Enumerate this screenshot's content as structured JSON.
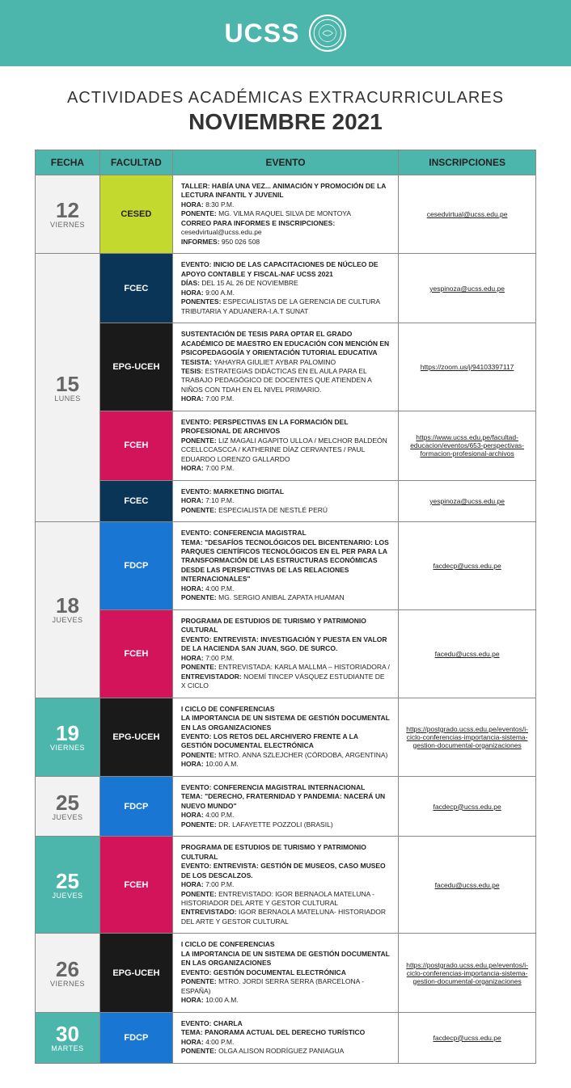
{
  "header": {
    "logo_text": "UCSS"
  },
  "title": {
    "line1": "ACTIVIDADES ACADÉMICAS EXTRACURRICULARES",
    "line2": "NOVIEMBRE 2021"
  },
  "columns": {
    "fecha": "FECHA",
    "facultad": "FACULTAD",
    "evento": "EVENTO",
    "inscripciones": "INSCRIPCIONES"
  },
  "colors": {
    "teal": "#4db6ac",
    "cesed": "#c4d92e",
    "fcec": "#0b3556",
    "epg": "#1a1a1a",
    "fceh": "#d4145a",
    "fdcp": "#1976d2",
    "grey": "#f2f2f2"
  },
  "rows": [
    {
      "date_num": "12",
      "date_day": "VIERNES",
      "date_bg": "grey",
      "fac": "CESED",
      "fac_bg": "cesed",
      "event": [
        {
          "b": 1,
          "t": "TALLER: HABÍA UNA VEZ... ANIMACIÓN Y PROMOCIÓN DE LA LECTURA INFANTIL Y JUVENIL"
        },
        {
          "b": 1,
          "t": "HORA: ",
          "t2": "8:30 P.M."
        },
        {
          "b": 1,
          "t": "PONENTE: ",
          "t2": "MG. VILMA RAQUEL SILVA DE MONTOYA"
        },
        {
          "b": 1,
          "t": "CORREO PARA INFORMES E INSCRIPCIONES:"
        },
        {
          "t": "cesedvirtual@ucss.edu.pe"
        },
        {
          "b": 1,
          "t": "INFORMES: ",
          "t2": "950 026 508"
        }
      ],
      "insc": "cesedvirtual@ucss.edu.pe"
    },
    {
      "date_num": "15",
      "date_day": "LUNES",
      "date_bg": "grey",
      "rowspan": 4,
      "fac": "FCEC",
      "fac_bg": "fcec",
      "event": [
        {
          "b": 1,
          "t": "EVENTO: INICIO DE LAS CAPACITACIONES DE NÚCLEO DE APOYO CONTABLE Y FISCAL-NAF UCSS 2021"
        },
        {
          "b": 1,
          "t": "DÍAS: ",
          "t2": "DEL 15 AL 26 DE NOVIEMBRE"
        },
        {
          "b": 1,
          "t": "HORA: ",
          "t2": "9:00 A.M."
        },
        {
          "b": 1,
          "t": "PONENTES: ",
          "t2": "ESPECIALISTAS DE LA GERENCIA DE CULTURA TRIBUTARIA Y ADUANERA-I.A.T SUNAT"
        }
      ],
      "insc": "yespinoza@ucss.edu.pe"
    },
    {
      "fac": "EPG-UCEH",
      "fac_bg": "epg",
      "event": [
        {
          "b": 1,
          "t": "SUSTENTACIÓN DE TESIS PARA OPTAR EL GRADO ACADÉMICO DE MAESTRO EN EDUCACIÓN CON MENCIÓN EN PSICOPEDAGOGÍA Y ORIENTACIÓN TUTORIAL EDUCATIVA"
        },
        {
          "b": 1,
          "t": "TESISTA: ",
          "t2": "YAHAYRA GIULIET AYBAR PALOMINO"
        },
        {
          "b": 1,
          "t": "TESIS: ",
          "t2": "ESTRATEGIAS DIDÁCTICAS EN EL AULA PARA EL TRABAJO PEDAGÓGICO DE DOCENTES QUE ATIENDEN A NIÑOS CON TDAH EN EL NIVEL PRIMARIO."
        },
        {
          "b": 1,
          "t": "HORA: ",
          "t2": "7:00 P.M."
        }
      ],
      "insc": "https://zoom.us/j/94103397117"
    },
    {
      "fac": "FCEH",
      "fac_bg": "fceh",
      "event": [
        {
          "b": 1,
          "t": "EVENTO: PERSPECTIVAS EN LA FORMACIÓN DEL PROFESIONAL DE ARCHIVOS"
        },
        {
          "b": 1,
          "t": "PONENTE: ",
          "t2": "LIZ MAGALI AGAPITO ULLOA / MELCHOR BALDEÓN CCELLCCASCCA / KATHERINE DÍAZ CERVANTES / PAUL EDUARDO LORENZO GALLARDO"
        },
        {
          "b": 1,
          "t": "HORA: ",
          "t2": "7:00 P.M."
        }
      ],
      "insc": "https://www.ucss.edu.pe/facultad-educacion/eventos/653-perspectivas-formacion-profesional-archivos"
    },
    {
      "fac": "FCEC",
      "fac_bg": "fcec",
      "event": [
        {
          "b": 1,
          "t": "EVENTO: MARKETING DIGITAL"
        },
        {
          "b": 1,
          "t": "HORA: ",
          "t2": "7:10 P.M."
        },
        {
          "b": 1,
          "t": "PONENTE: ",
          "t2": "ESPECIALISTA DE NESTLÉ PERÚ"
        }
      ],
      "insc": "yespinoza@ucss.edu.pe"
    },
    {
      "date_num": "18",
      "date_day": "JUEVES",
      "date_bg": "grey",
      "rowspan": 2,
      "fac": "FDCP",
      "fac_bg": "fdcp",
      "event": [
        {
          "b": 1,
          "t": "EVENTO: CONFERENCIA MAGISTRAL"
        },
        {
          "b": 1,
          "t": "TEMA:  \"DESAFÍOS TECNOLÓGICOS DEL BICENTENARIO: LOS PARQUES CIENTÍFICOS TECNOLÓGICOS EN EL PER  PARA LA TRANSFORMACIÓN DE LAS ESTRUCTURAS ECONÓMICAS DESDE LAS PERSPECTIVAS DE LAS RELACIONES INTERNACIONALES\""
        },
        {
          "b": 1,
          "t": "HORA: ",
          "t2": "4:00 P.M."
        },
        {
          "b": 1,
          "t": "PONENTE: ",
          "t2": "MG. SERGIO ANIBAL ZAPATA HUAMAN"
        }
      ],
      "insc": "facdecp@ucss.edu.pe"
    },
    {
      "fac": "FCEH",
      "fac_bg": "fceh",
      "event": [
        {
          "b": 1,
          "t": "PROGRAMA DE ESTUDIOS DE TURISMO Y PATRIMONIO CULTURAL"
        },
        {
          "b": 1,
          "t": "EVENTO: ENTREVISTA: INVESTIGACIÓN Y PUESTA EN VALOR DE LA HACIENDA SAN JUAN, SGO. DE SURCO."
        },
        {
          "b": 1,
          "t": "HORA: ",
          "t2": "7:00 P.M."
        },
        {
          "b": 1,
          "t": "PONENTE: ",
          "t2": "ENTREVISTADA: KARLA MALLMA – HISTORIADORA / "
        },
        {
          "b": 1,
          "t": "ENTREVISTADOR: ",
          "t2": "NOEMÍ TINCEP VÁSQUEZ ESTUDIANTE DE X CICLO"
        }
      ],
      "insc": "facedu@ucss.edu.pe"
    },
    {
      "date_num": "19",
      "date_day": "VIERNES",
      "date_bg": "teal",
      "fac": "EPG-UCEH",
      "fac_bg": "epg",
      "event": [
        {
          "b": 1,
          "t": "I CICLO DE CONFERENCIAS"
        },
        {
          "b": 1,
          "t": "LA IMPORTANCIA DE UN SISTEMA DE GESTIÓN DOCUMENTAL EN LAS ORGANIZACIONES"
        },
        {
          "b": 1,
          "t": "EVENTO: LOS RETOS DEL ARCHIVERO FRENTE A LA GESTIÓN DOCUMENTAL ELECTRÓNICA"
        },
        {
          "b": 1,
          "t": "PONENTE: ",
          "t2": "MTRO. ANNA SZLEJCHER (CÓRDOBA, ARGENTINA)"
        },
        {
          "b": 1,
          "t": "HORA: ",
          "t2": " 10:00 A.M."
        }
      ],
      "insc": "https://postgrado.ucss.edu.pe/eventos/i-ciclo-conferencias-importancia-sistema-gestion-documental-organizaciones"
    },
    {
      "date_num": "25",
      "date_day": "JUEVES",
      "date_bg": "grey",
      "fac": "FDCP",
      "fac_bg": "fdcp",
      "event": [
        {
          "b": 1,
          "t": "EVENTO: CONFERENCIA MAGISTRAL INTERNACIONAL"
        },
        {
          "b": 1,
          "t": "TEMA: \"DERECHO, FRATERNIDAD Y PANDEMIA: NACERÁ UN NUEVO MUNDO\""
        },
        {
          "b": 1,
          "t": "HORA: ",
          "t2": "4:00 P.M."
        },
        {
          "b": 1,
          "t": "PONENTE: ",
          "t2": "DR. LAFAYETTE POZZOLI (BRASIL)"
        }
      ],
      "insc": "facdecp@ucss.edu.pe"
    },
    {
      "date_num": "25",
      "date_day": "JUEVES",
      "date_bg": "teal",
      "fac": "FCEH",
      "fac_bg": "fceh",
      "event": [
        {
          "b": 1,
          "t": "PROGRAMA DE ESTUDIOS DE TURISMO Y PATRIMONIO CULTURAL"
        },
        {
          "b": 1,
          "t": "EVENTO: ENTREVISTA: GESTIÓN DE MUSEOS, CASO MUSEO DE LOS DESCALZOS."
        },
        {
          "b": 1,
          "t": "HORA: ",
          "t2": "7:00 P.M."
        },
        {
          "b": 1,
          "t": "PONENTE: ",
          "t2": "ENTREVISTADO: IGOR BERNAOLA MATELUNA - HISTORIADOR DEL ARTE Y GESTOR CULTURAL"
        },
        {
          "b": 1,
          "t": "ENTREVISTADO: ",
          "t2": "IGOR BERNAOLA MATELUNA- HISTORIADOR DEL ARTE Y GESTOR CULTURAL"
        }
      ],
      "insc": "facedu@ucss.edu.pe"
    },
    {
      "date_num": "26",
      "date_day": "VIERNES",
      "date_bg": "grey",
      "fac": "EPG-UCEH",
      "fac_bg": "epg",
      "event": [
        {
          "b": 1,
          "t": "I CICLO DE CONFERENCIAS"
        },
        {
          "b": 1,
          "t": "LA IMPORTANCIA DE UN SISTEMA DE GESTIÓN DOCUMENTAL EN LAS ORGANIZACIONES"
        },
        {
          "b": 1,
          "t": "EVENTO: GESTIÓN DOCUMENTAL ELECTRÓNICA"
        },
        {
          "b": 1,
          "t": "PONENTE: ",
          "t2": "MTRO. JORDI SERRA SERRA (BARCELONA - ESPAÑA)"
        },
        {
          "b": 1,
          "t": "HORA: ",
          "t2": " 10:00 A.M."
        }
      ],
      "insc": "https://postgrado.ucss.edu.pe/eventos/i-ciclo-conferencias-importancia-sistema-gestion-documental-organizaciones"
    },
    {
      "date_num": "30",
      "date_day": "MARTES",
      "date_bg": "teal",
      "fac": "FDCP",
      "fac_bg": "fdcp",
      "event": [
        {
          "b": 1,
          "t": "EVENTO: CHARLA"
        },
        {
          "b": 1,
          "t": "TEMA: PANORAMA ACTUAL DEL DERECHO TURÍSTICO"
        },
        {
          "b": 1,
          "t": "HORA: ",
          "t2": "4:00 P.M."
        },
        {
          "b": 1,
          "t": "PONENTE: ",
          "t2": "OLGA ALISON RODRÍGUEZ PANIAGUA"
        }
      ],
      "insc": "facdecp@ucss.edu.pe"
    }
  ]
}
